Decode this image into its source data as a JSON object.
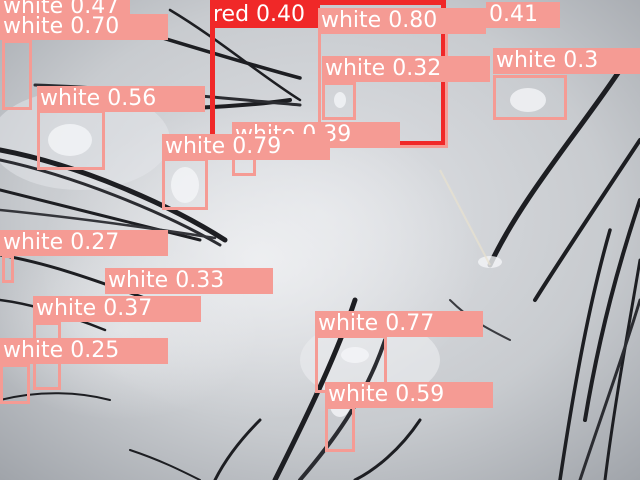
{
  "image": {
    "subject": "microscope view of scalp skin with hair strands and detection overlays",
    "colors": {
      "skin_light": "#dcdee2",
      "skin_mid": "#b9bcc1",
      "hair": "#1d1e22",
      "white_class": "#f59b94",
      "red_class": "#f02828"
    }
  },
  "detections": [
    {
      "label": "white 0.47",
      "color": "#f59b94"
    },
    {
      "label": "white 0.70",
      "color": "#f59b94"
    },
    {
      "label": "red 0.40",
      "color": "#f02828"
    },
    {
      "label": "white 0.80",
      "color": "#f59b94"
    },
    {
      "label": "0.41",
      "color": "#f59b94"
    },
    {
      "label": "white 0.32",
      "color": "#f59b94"
    },
    {
      "label": "white 0.3",
      "color": "#f59b94"
    },
    {
      "label": "white 0.56",
      "color": "#f59b94"
    },
    {
      "label": "white 0.39",
      "color": "#f59b94"
    },
    {
      "label": "white 0.79",
      "color": "#f59b94"
    },
    {
      "label": "white 0.27",
      "color": "#f59b94"
    },
    {
      "label": "white 0.33",
      "color": "#f59b94"
    },
    {
      "label": "white 0.37",
      "color": "#f59b94"
    },
    {
      "label": "white 0.25",
      "color": "#f59b94"
    },
    {
      "label": "white 0.77",
      "color": "#f59b94"
    },
    {
      "label": "white 0.59",
      "color": "#f59b94"
    }
  ]
}
